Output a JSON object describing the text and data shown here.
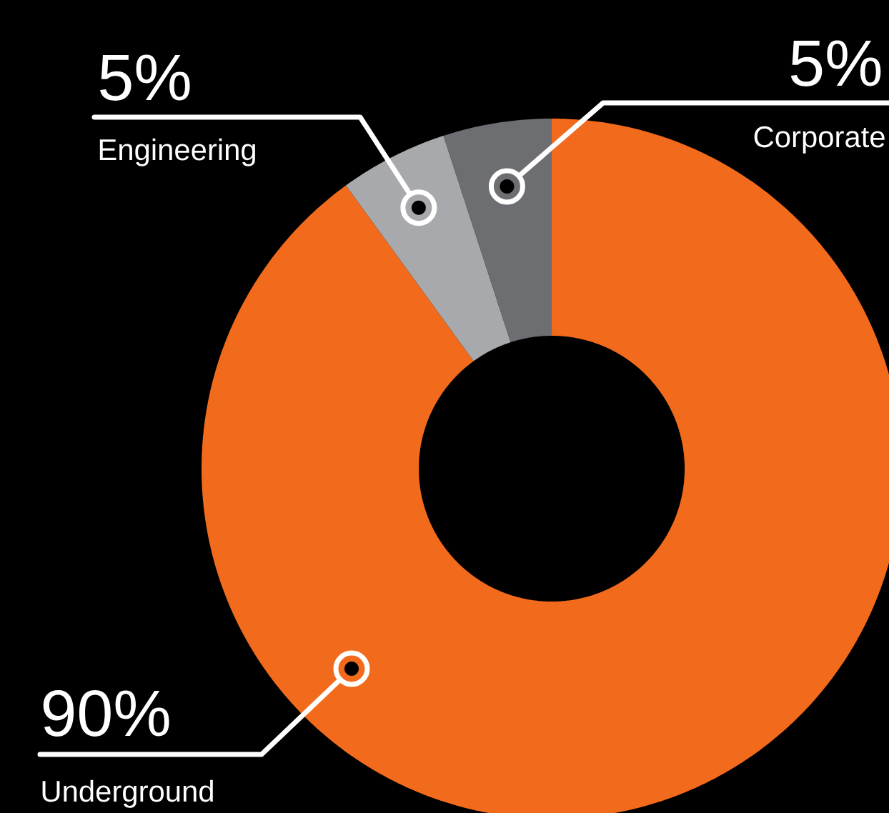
{
  "chart_data": {
    "type": "donut",
    "categories": [
      "Underground",
      "Engineering",
      "Corporate"
    ],
    "values": [
      90,
      5,
      5
    ],
    "colors": [
      "#f26a1b",
      "#a7a9ac",
      "#6d6e71"
    ],
    "value_labels": [
      "90%",
      "5%",
      "5%"
    ]
  }
}
